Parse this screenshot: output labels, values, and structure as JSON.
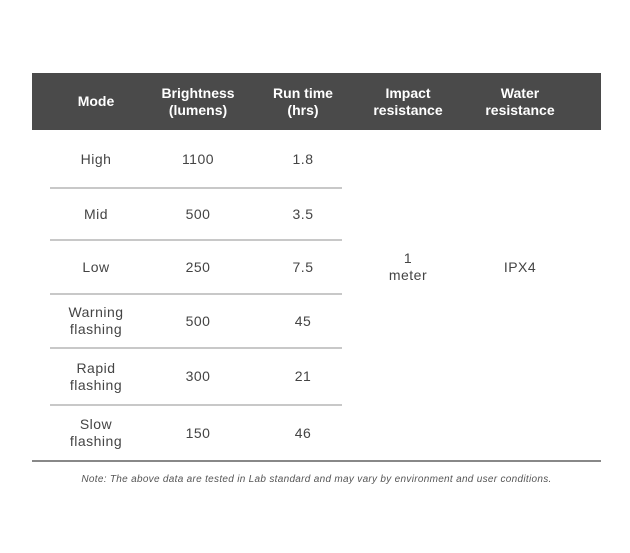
{
  "table": {
    "headers": [
      "Mode",
      "Brightness\n(lumens)",
      "Run time\n(hrs)",
      "Impact\nresistance",
      "Water\nresistance"
    ],
    "rows": [
      {
        "mode": "High",
        "brightness": "1100",
        "runtime": "1.8"
      },
      {
        "mode": "Mid",
        "brightness": "500",
        "runtime": "3.5"
      },
      {
        "mode": "Low",
        "brightness": "250",
        "runtime": "7.5"
      },
      {
        "mode": "Warning\nflashing",
        "brightness": "500",
        "runtime": "45"
      },
      {
        "mode": "Rapid\nflashing",
        "brightness": "300",
        "runtime": "21"
      },
      {
        "mode": "Slow\nflashing",
        "brightness": "150",
        "runtime": "46"
      }
    ],
    "impact_resistance": "1\nmeter",
    "water_resistance": "IPX4",
    "header_color": "#4a4a4a"
  },
  "note": "Note: The above data are tested in Lab standard and may vary by environment and user conditions."
}
